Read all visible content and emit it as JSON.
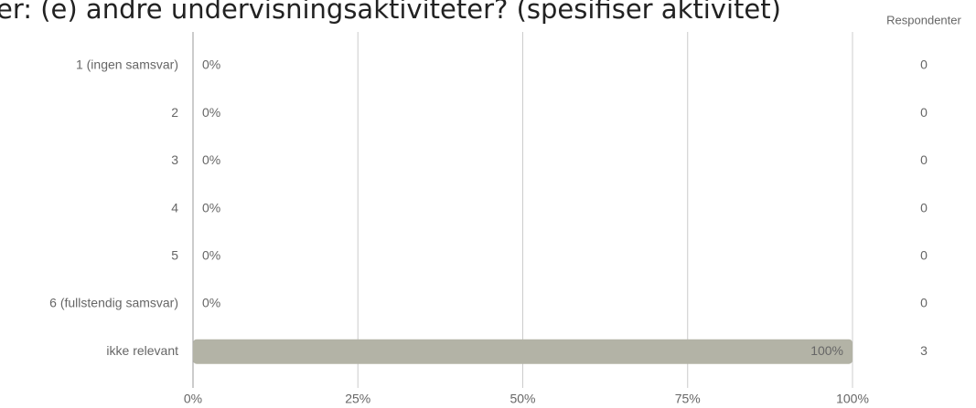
{
  "chart_data": {
    "type": "bar",
    "orientation": "horizontal",
    "title": "er:   (e) andre undervisningsaktiviteter? (spesifiser aktivitet)",
    "categories": [
      "1 (ingen samsvar)",
      "2",
      "3",
      "4",
      "5",
      "6 (fullstendig samsvar)",
      "ikke relevant"
    ],
    "values": [
      0,
      0,
      0,
      0,
      0,
      0,
      100
    ],
    "value_labels": [
      "0%",
      "0%",
      "0%",
      "0%",
      "0%",
      "0%",
      "100%"
    ],
    "color": "#b3b3a6",
    "xlim": [
      0,
      100
    ],
    "xticks": [
      {
        "value": 0,
        "label": "0%"
      },
      {
        "value": 25,
        "label": "25%"
      },
      {
        "value": 50,
        "label": "50%"
      },
      {
        "value": 75,
        "label": "75%"
      },
      {
        "value": 100,
        "label": "100%"
      }
    ],
    "grid": true,
    "respondents": {
      "label": "Respondenter",
      "values": [
        0,
        0,
        0,
        0,
        0,
        0,
        3
      ]
    }
  }
}
